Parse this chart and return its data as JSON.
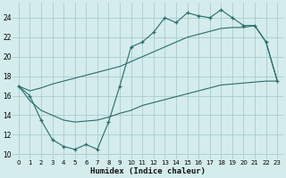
{
  "xlabel": "Humidex (Indice chaleur)",
  "bg_color": "#d4ecec",
  "grid_color": "#aacccc",
  "line_color": "#2a6b6b",
  "xlim": [
    -0.5,
    23.5
  ],
  "ylim": [
    9.5,
    25.5
  ],
  "xticks": [
    0,
    1,
    2,
    3,
    4,
    5,
    6,
    7,
    8,
    9,
    10,
    11,
    12,
    13,
    14,
    15,
    16,
    17,
    18,
    19,
    20,
    21,
    22,
    23
  ],
  "yticks": [
    10,
    12,
    14,
    16,
    18,
    20,
    22,
    24
  ],
  "line1_x": [
    0,
    1,
    2,
    3,
    4,
    5,
    6,
    7,
    8,
    9,
    10,
    11,
    12,
    13,
    14,
    15,
    16,
    17,
    18,
    19,
    20,
    21,
    22,
    23
  ],
  "line1_y": [
    17.0,
    16.0,
    13.5,
    11.5,
    10.8,
    10.5,
    11.0,
    10.5,
    13.3,
    17.0,
    21.0,
    21.5,
    22.5,
    24.0,
    23.5,
    24.5,
    24.2,
    24.0,
    24.8,
    24.0,
    23.2,
    23.2,
    21.5,
    17.5
  ],
  "line2_x": [
    0,
    1,
    2,
    3,
    4,
    5,
    6,
    7,
    8,
    9,
    10,
    11,
    12,
    13,
    14,
    15,
    16,
    17,
    18,
    19,
    20,
    21,
    22,
    23
  ],
  "line2_y": [
    17.0,
    16.5,
    16.8,
    17.2,
    17.5,
    17.8,
    18.1,
    18.4,
    18.7,
    19.0,
    19.5,
    20.0,
    20.5,
    21.0,
    21.5,
    22.0,
    22.3,
    22.6,
    22.9,
    23.0,
    23.0,
    23.2,
    21.5,
    17.5
  ],
  "line3_x": [
    0,
    1,
    2,
    3,
    4,
    5,
    6,
    7,
    8,
    9,
    10,
    11,
    12,
    13,
    14,
    15,
    16,
    17,
    18,
    19,
    20,
    21,
    22,
    23
  ],
  "line3_y": [
    17.0,
    15.5,
    14.5,
    14.0,
    13.5,
    13.3,
    13.4,
    13.5,
    13.8,
    14.2,
    14.5,
    15.0,
    15.3,
    15.6,
    15.9,
    16.2,
    16.5,
    16.8,
    17.1,
    17.2,
    17.3,
    17.4,
    17.5,
    17.5
  ]
}
